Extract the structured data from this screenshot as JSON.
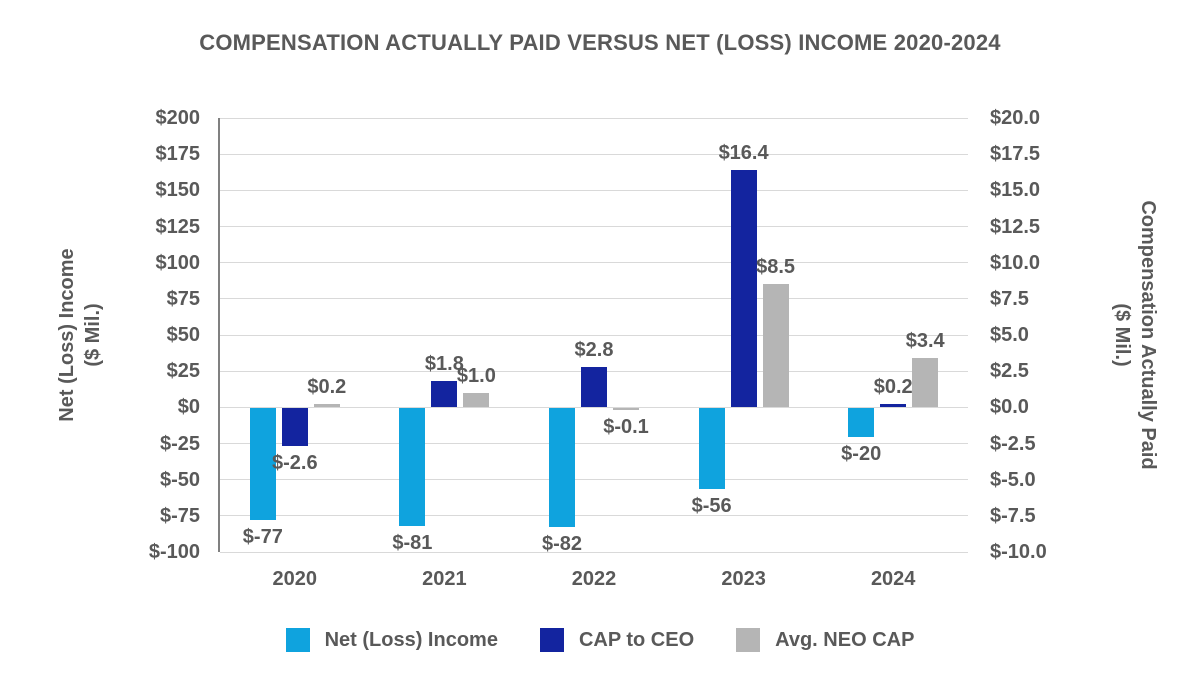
{
  "title": "COMPENSATION ACTUALLY PAID VERSUS NET (LOSS) INCOME 2020-2024",
  "colors": {
    "net_loss_income": "#0FA3DE",
    "cap_to_ceo": "#13249F",
    "avg_neo_cap": "#B5B5B5",
    "text": "#595959",
    "gridline": "#D9D9D9",
    "axis_line": "#808080"
  },
  "chart_data": {
    "type": "bar",
    "title": "COMPENSATION ACTUALLY PAID VERSUS NET (LOSS) INCOME 2020-2024",
    "categories": [
      "2020",
      "2021",
      "2022",
      "2023",
      "2024"
    ],
    "series": [
      {
        "name": "Net (Loss) Income",
        "axis": "left",
        "color_key": "net_loss_income",
        "values": [
          -77,
          -81,
          -82,
          -56,
          -20
        ],
        "labels": [
          "$-77",
          "$-81",
          "$-82",
          "$-56",
          "$-20"
        ]
      },
      {
        "name": "CAP to CEO",
        "axis": "right",
        "color_key": "cap_to_ceo",
        "values": [
          -2.6,
          1.8,
          2.8,
          16.4,
          0.2
        ],
        "labels": [
          "$-2.6",
          "$1.8",
          "$2.8",
          "$16.4",
          "$0.2"
        ]
      },
      {
        "name": "Avg. NEO CAP",
        "axis": "right",
        "color_key": "avg_neo_cap",
        "values": [
          0.2,
          1.0,
          -0.1,
          8.5,
          3.4
        ],
        "labels": [
          "$0.2",
          "$1.0",
          "$-0.1",
          "$8.5",
          "$3.4"
        ]
      }
    ],
    "axes": {
      "left": {
        "label": [
          "Net (Loss) Income",
          "($ Mil.)"
        ],
        "ticks": [
          "$200",
          "$175",
          "$150",
          "$125",
          "$100",
          "$75",
          "$50",
          "$25",
          "$0",
          "$-25",
          "$-50",
          "$-75",
          "$-100"
        ],
        "lim": [
          -100,
          200
        ]
      },
      "right": {
        "label": [
          "Compensation Actually Paid",
          "($ Mil.)"
        ],
        "ticks": [
          "$20.0",
          "$17.5",
          "$15.0",
          "$12.5",
          "$10.0",
          "$7.5",
          "$5.0",
          "$2.5",
          "$0.0",
          "$-2.5",
          "$-5.0",
          "$-7.5",
          "$-10.0"
        ],
        "lim": [
          -10,
          20
        ]
      }
    },
    "grid": true,
    "legend_position": "bottom"
  }
}
